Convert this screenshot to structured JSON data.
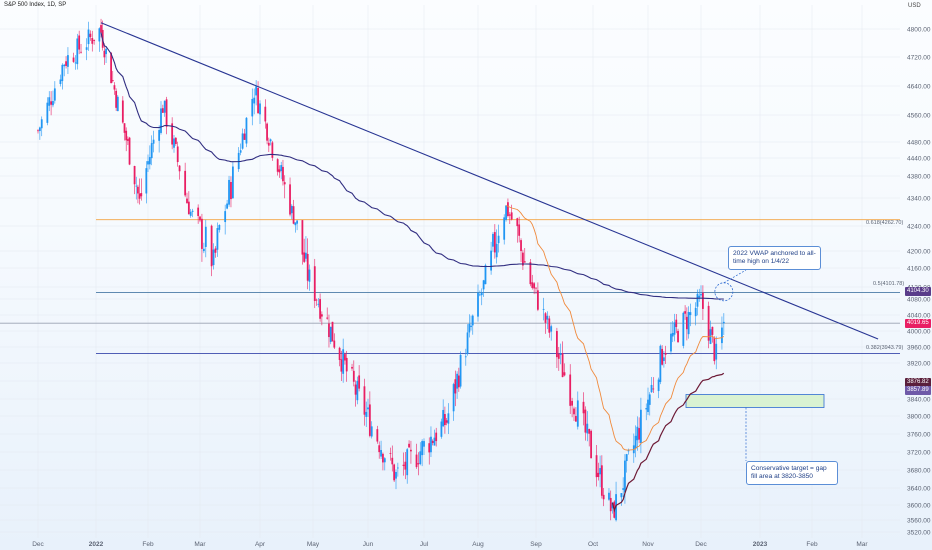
{
  "header": {
    "title": "S&P 500 Index, 1D, SP",
    "currency": "USD"
  },
  "colors": {
    "up": "#2196f3",
    "down": "#e91e63",
    "trendline": "#283593",
    "vwap": "#312e81",
    "ema": "#f08a3c",
    "red_line": "#6d1a36",
    "fib_gold": "#f4a340",
    "fib_blue": "#4a7ba6",
    "fib_navy": "#3949ab",
    "zone_fill": "#d9f2d2",
    "zone_border": "#2f6bd1"
  },
  "annotations": {
    "vwap_note": "2022 VWAP anchored to all-time high on 1/4/22",
    "target_note": "Conservative target = gap fill area at 3820-3850"
  },
  "price_tags": [
    {
      "label": "4104.30",
      "color": "#5a3d8a",
      "value": 4104.3
    },
    {
      "label": "4019.65",
      "color": "#e91e63",
      "value": 4019.65
    },
    {
      "label": "3876.82",
      "color": "#5a1f3b",
      "value": 3876.82
    },
    {
      "label": "3857.89",
      "color": "#6f5aa8",
      "value": 3857.89
    }
  ],
  "fib_labels": [
    {
      "text": "0.618(4262.70)",
      "value": 4262.7
    },
    {
      "text": "0.5(4101.78)",
      "value": 4101.78
    },
    {
      "text": "0.382(3943.79)",
      "value": 3943.79
    }
  ],
  "chart_data": {
    "type": "candlestick",
    "title": "S&P 500 Index, 1D, SP",
    "y_axis": {
      "ticks": [
        4800,
        4720,
        4640,
        4560,
        4480,
        4440,
        4380,
        4340,
        4240,
        4200,
        4160,
        4120,
        4080,
        4040,
        4000,
        3960,
        3920,
        3880,
        3840,
        3800,
        3760,
        3720,
        3680,
        3640,
        3600,
        3560,
        3520
      ],
      "tick_labels": [
        "4800.00",
        "4720.00",
        "4640.00",
        "4560.00",
        "4480.00",
        "4440.00",
        "4380.00",
        "4340.00",
        "4240.00",
        "4200.00",
        "4160.00",
        "4120.00",
        "4080.00",
        "4040.00",
        "4000.00",
        "3960.00",
        "3920.00",
        "3880.00",
        "3840.00",
        "3800.00",
        "3760.00",
        "3720.00",
        "3680.00",
        "3640.00",
        "3600.00",
        "3560.00",
        "3520.00"
      ]
    },
    "x_axis": {
      "tick_labels": [
        "Dec",
        "2022",
        "Feb",
        "Mar",
        "Apr",
        "May",
        "Jun",
        "Jul",
        "Aug",
        "Sep",
        "Oct",
        "Nov",
        "Dec",
        "2023",
        "Feb",
        "Mar"
      ]
    },
    "horizontal_levels": [
      {
        "name": "0.618(4262.70)",
        "value": 4262.7
      },
      {
        "name": "0.5(4101.78)",
        "value": 4101.78
      },
      {
        "name": "0.382(3943.79)",
        "value": 3943.79
      },
      {
        "value": 4019.65
      }
    ],
    "trendline": {
      "start": [
        "2022-01-04",
        4818
      ],
      "end": [
        "2023-03-10",
        3980
      ]
    },
    "target_zone": {
      "low": 3820,
      "high": 3850,
      "from": "2022-12-15",
      "to": "2023-01-31"
    },
    "anchor_marker": {
      "date": "2022-12-13",
      "value": 4104
    },
    "vwap_anchor": "2022-01-04",
    "ohlc_sample_closes": [
      [
        "2021-12-01",
        4513
      ],
      [
        "2021-12-15",
        4709
      ],
      [
        "2022-01-03",
        4796
      ],
      [
        "2022-01-04",
        4793
      ],
      [
        "2022-01-27",
        4326
      ],
      [
        "2022-02-09",
        4587
      ],
      [
        "2022-02-24",
        4288
      ],
      [
        "2022-03-08",
        4170
      ],
      [
        "2022-03-29",
        4631
      ],
      [
        "2022-04-29",
        4131
      ],
      [
        "2022-05-20",
        3901
      ],
      [
        "2022-06-16",
        3666
      ],
      [
        "2022-07-14",
        3790
      ],
      [
        "2022-08-16",
        4305
      ],
      [
        "2022-09-13",
        3932
      ],
      [
        "2022-10-12",
        3577
      ],
      [
        "2022-11-10",
        3956
      ],
      [
        "2022-12-01",
        4076
      ],
      [
        "2022-12-09",
        3934
      ],
      [
        "2022-12-13",
        4019
      ]
    ]
  }
}
